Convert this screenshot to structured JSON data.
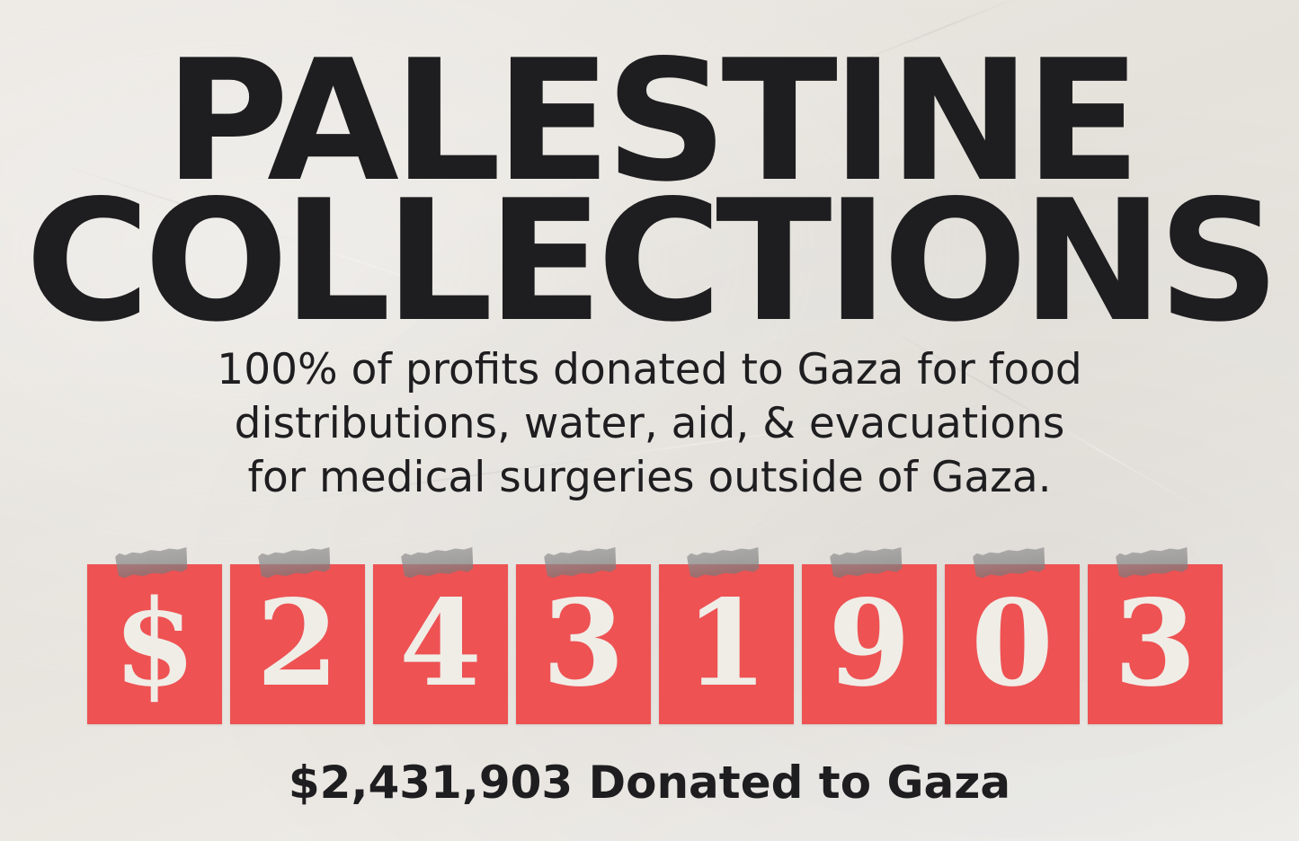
{
  "title": {
    "line1": "PALESTINE",
    "line2": "COLLECTIONS"
  },
  "subtitle": {
    "line1": "100% of profits donated to Gaza for food",
    "line2": "distributions, water, aid, & evacuations",
    "line3": "for medical surgeries outside of Gaza."
  },
  "counter": {
    "digits": [
      "$",
      "2",
      "4",
      "3",
      "1",
      "9",
      "0",
      "3"
    ],
    "tile_color": "#ee5253",
    "digit_color": "#f0ede7"
  },
  "footer": {
    "total_text": "$2,431,903 Donated to Gaza"
  },
  "colors": {
    "text": "#1e1d1f",
    "background": "#e9e6e1"
  }
}
